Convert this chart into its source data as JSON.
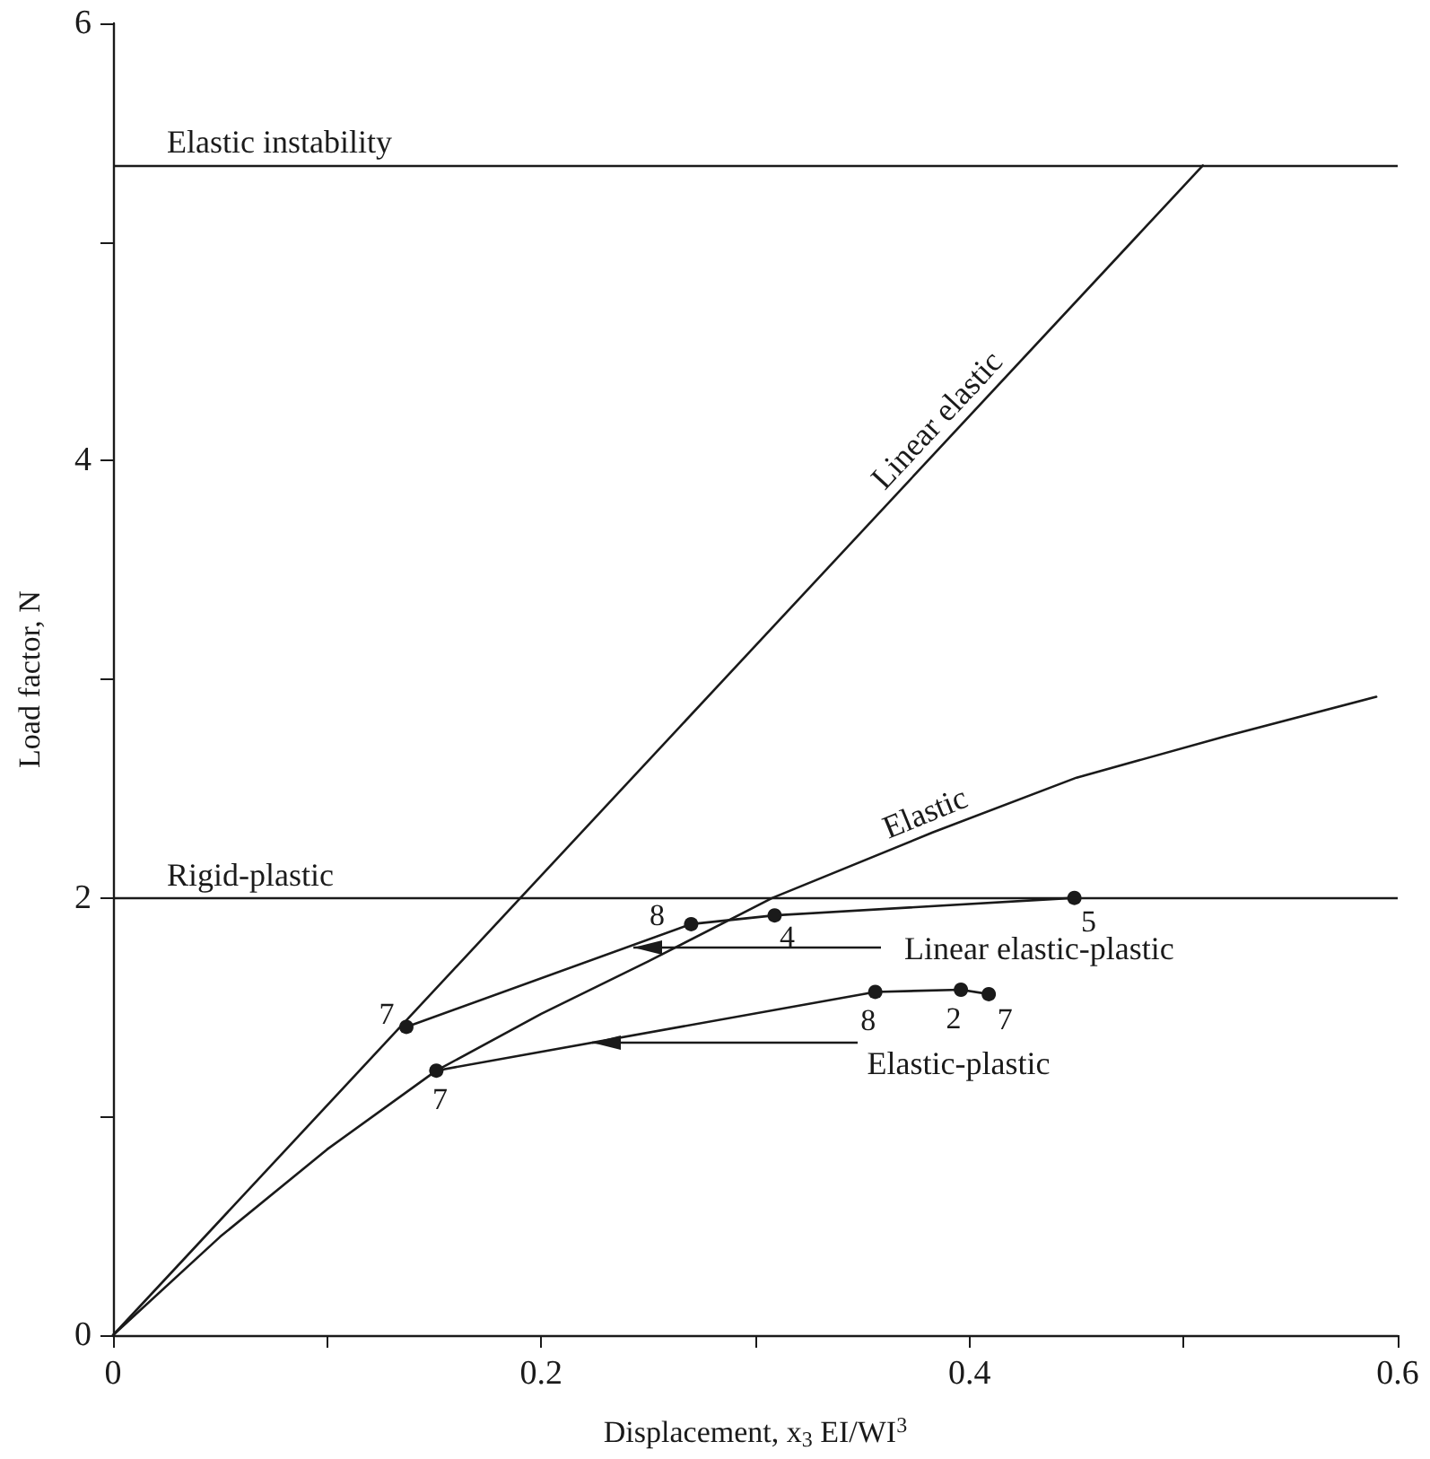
{
  "chart_data": {
    "type": "line",
    "xlabel": "Displacement, x$_{3}$ EI/WI$^{3}$",
    "ylabel": "Load factor, N",
    "xlim": [
      0,
      0.6
    ],
    "ylim": [
      0,
      6
    ],
    "xticks": [
      0,
      {
        "value": 0.1,
        "label": null
      },
      0.2,
      {
        "value": 0.3,
        "label": null
      },
      0.4,
      {
        "value": 0.5,
        "label": null
      },
      0.6
    ],
    "yticks": [
      0,
      {
        "value": 1,
        "label": null
      },
      2,
      {
        "value": 3,
        "label": null
      },
      4,
      {
        "value": 5,
        "label": null
      },
      6
    ],
    "grid": false,
    "legend": false,
    "series": [
      {
        "name": "Linear elastic",
        "color": "#1a1a1a",
        "marker": "none",
        "x": [
          0,
          0.509
        ],
        "values": [
          0,
          5.35
        ]
      },
      {
        "name": "Elastic",
        "color": "#1a1a1a",
        "marker": "none",
        "x": [
          0,
          0.05,
          0.1,
          0.151,
          0.2,
          0.25,
          0.308,
          0.383,
          0.45,
          0.52,
          0.59
        ],
        "values": [
          0,
          0.45,
          0.85,
          1.21,
          1.47,
          1.71,
          2.0,
          2.3,
          2.55,
          2.74,
          2.92
        ]
      },
      {
        "color": "#1a1a1a",
        "marker": "circle",
        "x": [
          0.137,
          0.27,
          0.309,
          0.449
        ],
        "values": [
          1.41,
          1.88,
          1.92,
          2.0
        ]
      },
      {
        "color": "#1a1a1a",
        "marker": "circle",
        "x": [
          0.151,
          0.356,
          0.396,
          0.409
        ],
        "values": [
          1.21,
          1.57,
          1.58,
          1.56
        ]
      }
    ],
    "ref_lines": [
      {
        "axis": "y",
        "value": 5.35,
        "label": "Elastic instability"
      },
      {
        "axis": "y",
        "value": 2,
        "label": "Rigid-plastic"
      }
    ],
    "annotations": [
      {
        "text": "Linear elastic-plastic",
        "x": 0.243,
        "y": 1.77
      },
      {
        "text": "Elastic-plastic",
        "x": 0.224,
        "y": 1.34
      },
      {
        "text": "7",
        "x": 0.137,
        "y": 1.41
      },
      {
        "text": "8",
        "x": 0.27,
        "y": 1.88
      },
      {
        "text": "4",
        "x": 0.309,
        "y": 1.92
      },
      {
        "text": "5",
        "x": 0.449,
        "y": 2.0
      },
      {
        "text": "7",
        "x": 0.151,
        "y": 1.21
      },
      {
        "text": "8",
        "x": 0.356,
        "y": 1.57
      },
      {
        "text": "2",
        "x": 0.396,
        "y": 1.58
      },
      {
        "text": "7",
        "x": 0.409,
        "y": 1.56
      }
    ]
  }
}
